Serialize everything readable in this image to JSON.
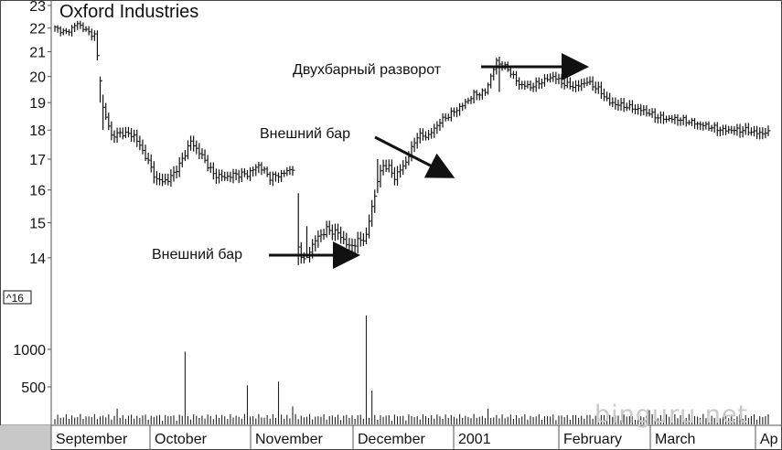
{
  "chart_data": {
    "type": "bar",
    "title": "Oxford Industries",
    "price_axis": {
      "ticks": [
        "14",
        "15",
        "16",
        "17",
        "18",
        "19",
        "20",
        "21",
        "22",
        "23"
      ],
      "ylim": [
        13.6,
        23
      ],
      "scale": "log"
    },
    "volume_axis": {
      "ticks": [
        "500",
        "1000"
      ],
      "ylim": [
        0,
        1500
      ],
      "scale_tag": "^16"
    },
    "months": [
      "September",
      "October",
      "November",
      "December",
      "2001",
      "February",
      "March",
      "Ap"
    ],
    "price_anchors": {
      "x_index": [
        0,
        4,
        8,
        12,
        14,
        16,
        17,
        20,
        24,
        28,
        32,
        36,
        40,
        44,
        48,
        52,
        56,
        60,
        64,
        68,
        72,
        76,
        80,
        84,
        86,
        88,
        89,
        90,
        92,
        96,
        100,
        104,
        106,
        108,
        110,
        112,
        113,
        114,
        116,
        118,
        120,
        124,
        128,
        132,
        136,
        140,
        144,
        148,
        152,
        156,
        160,
        164,
        168,
        172,
        176,
        180,
        184,
        188,
        192,
        196,
        200,
        204,
        208,
        212,
        216,
        220,
        224,
        228,
        232,
        236,
        240,
        244,
        248,
        252
      ],
      "close": [
        22,
        21.8,
        22.2,
        21.8,
        21.7,
        19.9,
        18.8,
        17.8,
        17.9,
        17.8,
        17.1,
        16.3,
        16.3,
        16.8,
        17.6,
        17.1,
        16.5,
        16.4,
        16.5,
        16.5,
        16.8,
        16.4,
        16.5,
        16.7,
        14.3,
        13.9,
        14.0,
        14.2,
        14.5,
        14.8,
        14.7,
        14.3,
        14.4,
        14.5,
        14.6,
        15.5,
        15.8,
        16.3,
        16.8,
        16.7,
        16.4,
        16.9,
        17.8,
        17.8,
        18.3,
        18.6,
        18.9,
        19.3,
        19.4,
        20.6,
        20.3,
        19.7,
        19.6,
        19.8,
        20.0,
        19.7,
        19.6,
        19.8,
        19.5,
        19.0,
        18.9,
        18.8,
        18.7,
        18.5,
        18.4,
        18.4,
        18.3,
        18.2,
        18.1,
        18.0,
        18.0,
        18.0,
        17.9,
        17.9
      ]
    },
    "volume_bars": [
      {
        "x": 46,
        "v": 970
      },
      {
        "x": 68,
        "v": 520
      },
      {
        "x": 79,
        "v": 570
      },
      {
        "x": 110,
        "v": 1450
      },
      {
        "x": 112,
        "v": 450
      },
      {
        "x": 84,
        "v": 240
      },
      {
        "x": 22,
        "v": 210
      },
      {
        "x": 153,
        "v": 210
      },
      {
        "x": 210,
        "v": 190
      }
    ],
    "annotations": [
      {
        "label": "Двухбарный разворот"
      },
      {
        "label": "Внешний бар"
      },
      {
        "label": "Внешний бар"
      }
    ]
  },
  "watermark": "binguru.net"
}
